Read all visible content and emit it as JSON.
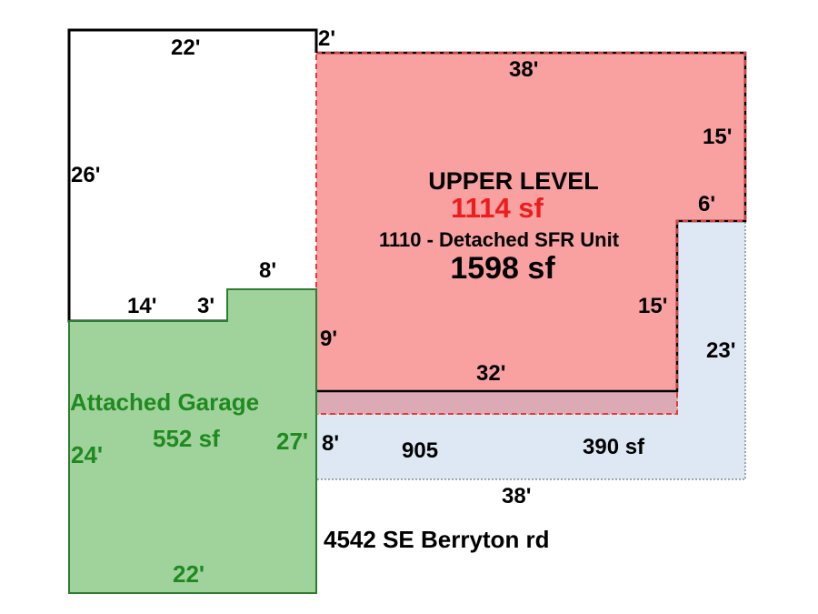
{
  "colors": {
    "upper_fill": "#f9a0a0",
    "upper_border": "#e53935",
    "overlap_fill": "#dcaab5",
    "garage_fill": "#a0d29c",
    "garage_border": "#2e7d32",
    "lower_fill": "#dde8f4",
    "label_red": "#ee1c1c",
    "label_green": "#1f8a1f"
  },
  "upper": {
    "title": "UPPER LEVEL",
    "area": "1114 sf",
    "unit_label": "1110 - Detached SFR Unit",
    "unit_area": "1598 sf"
  },
  "garage": {
    "title": "Attached Garage",
    "area": "552 sf"
  },
  "lower": {
    "label_a": "905",
    "label_b": "390 sf"
  },
  "address": "4542 SE Berryton rd",
  "dimensions": {
    "top_left": "22'",
    "top_step": "2'",
    "top_upper": "38'",
    "right_upper": "15'",
    "right_notch": "6'",
    "left_main": "26'",
    "notch_top": "8'",
    "bottom_left": "14'",
    "notch_side": "3'",
    "inner_right": "15'",
    "left_upper": "9'",
    "upper_bottom": "32'",
    "right_lower": "23'",
    "garage_side": "27'",
    "lower_left": "8'",
    "garage_left": "24'",
    "lower_bottom": "38'",
    "garage_bottom": "22'"
  }
}
